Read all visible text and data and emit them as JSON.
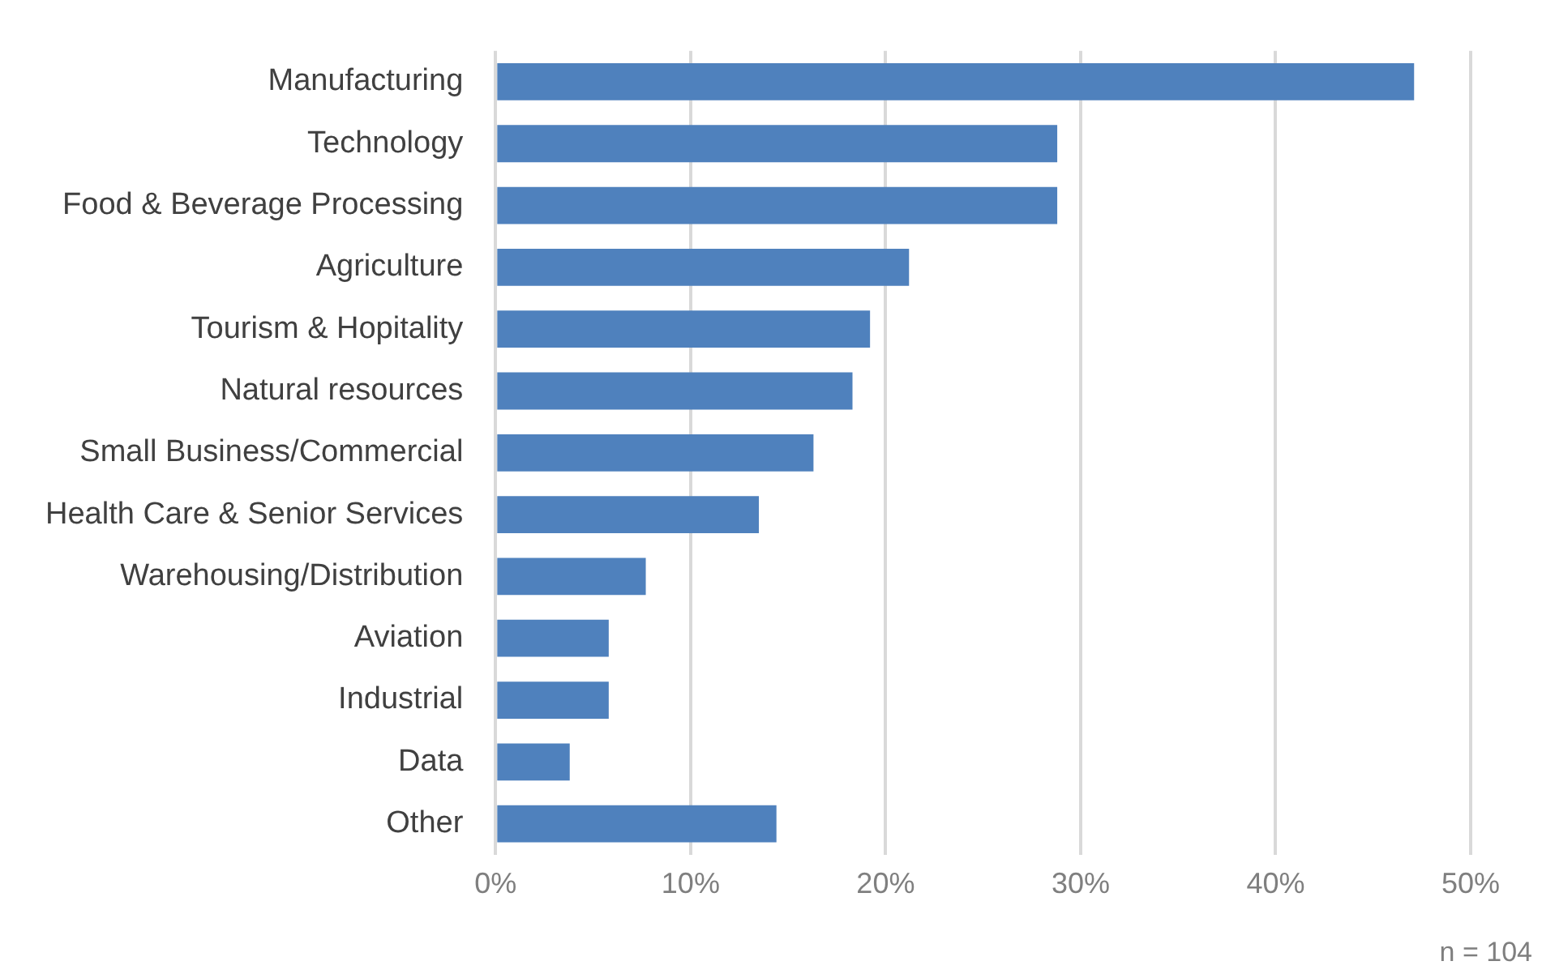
{
  "chart_data": {
    "type": "bar",
    "orientation": "horizontal",
    "categories": [
      "Manufacturing",
      "Technology",
      "Food & Beverage Processing",
      "Agriculture",
      "Tourism & Hopitality",
      "Natural resources",
      "Small Business/Commercial",
      "Health Care & Senior Services",
      "Warehousing/Distribution",
      "Aviation",
      "Industrial",
      "Data",
      "Other"
    ],
    "values": [
      47.1,
      28.8,
      28.8,
      21.2,
      19.2,
      18.3,
      16.3,
      13.5,
      7.7,
      5.8,
      5.8,
      3.8,
      14.4
    ],
    "color": "#4f81bd",
    "xlim": [
      0,
      50
    ],
    "xticks": [
      {
        "value": 0,
        "label": "0%"
      },
      {
        "value": 10,
        "label": "10%"
      },
      {
        "value": 20,
        "label": "20%"
      },
      {
        "value": 30,
        "label": "30%"
      },
      {
        "value": 40,
        "label": "40%"
      },
      {
        "value": 50,
        "label": "50%"
      }
    ],
    "grid": "x",
    "legend": false,
    "annotations": [
      "n = 104"
    ]
  }
}
